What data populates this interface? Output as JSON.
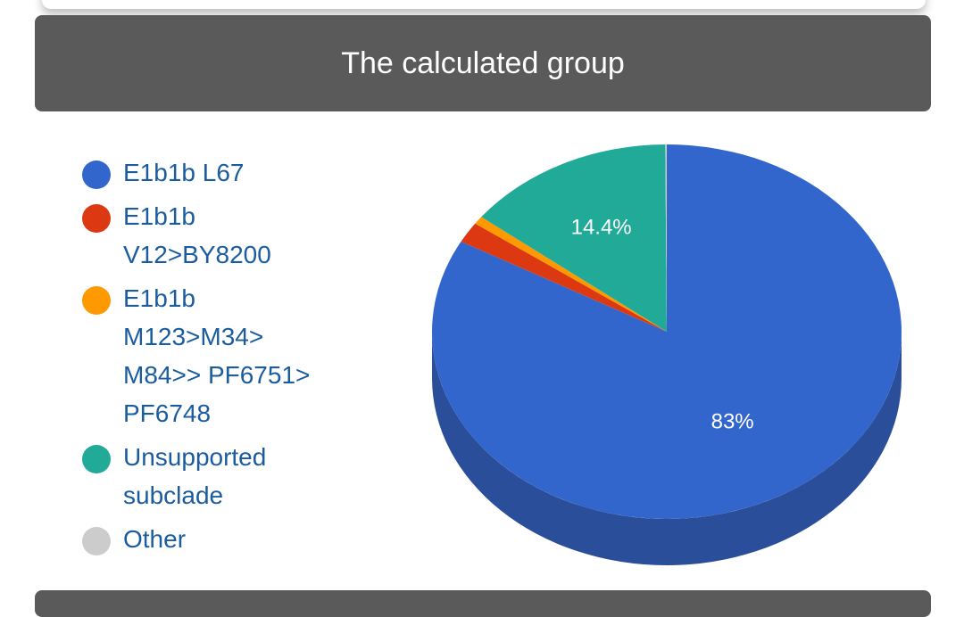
{
  "chart_data": {
    "type": "pie",
    "title": "The calculated group",
    "slices": [
      {
        "label": "E1b1b L67",
        "value": 83.0,
        "color": "#3366cc",
        "side_color": "#2a4e9a",
        "data_label": "83%"
      },
      {
        "label": "E1b1b V12>BY8200",
        "value": 1.8,
        "color": "#dc3912",
        "side_color": "#a82c0e",
        "data_label": ""
      },
      {
        "label": "E1b1b M123>M34> M84>> PF6751> PF6748",
        "value": 0.7,
        "color": "#ff9900",
        "side_color": "#c77700",
        "data_label": ""
      },
      {
        "label": "Unsupported subclade",
        "value": 14.4,
        "color": "#22aa99",
        "side_color": "#1a8275",
        "data_label": "14.4%"
      },
      {
        "label": "Other",
        "value": 0.1,
        "color": "#cccccc",
        "side_color": "#9e9e9e",
        "data_label": ""
      }
    ],
    "legend_position": "left",
    "is_3d": true
  }
}
